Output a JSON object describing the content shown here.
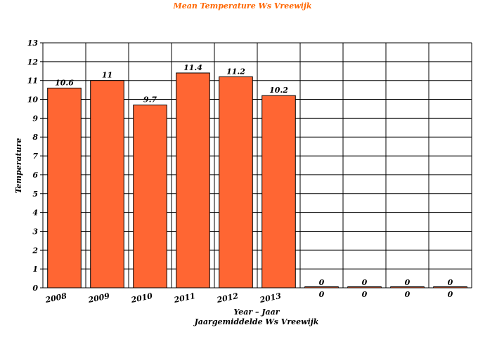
{
  "chart_data": {
    "type": "bar",
    "title": "Mean Temperature Ws Vreewijk",
    "xlabel": "Year – Jaar",
    "xlabel2": "Jaargemiddelde Ws Vreewijk",
    "ylabel": "Temperature",
    "ylim": [
      0,
      13
    ],
    "yticks": [
      "0",
      "1",
      "2",
      "3",
      "4",
      "5",
      "6",
      "7",
      "8",
      "9",
      "10",
      "11",
      "12",
      "13"
    ],
    "categories": [
      "2008",
      "2009",
      "2010",
      "2011",
      "2012",
      "2013",
      "0",
      "0",
      "0",
      "0"
    ],
    "values": [
      10.6,
      11,
      9.7,
      11.4,
      11.2,
      10.2,
      0,
      0,
      0,
      0
    ],
    "value_labels": [
      "10.6",
      "11",
      "9.7",
      "11.4",
      "11.2",
      "10.2",
      "0",
      "0",
      "0",
      "0"
    ],
    "grid": true,
    "colors": {
      "bar": "#ff6633",
      "bar_stroke": "#000000",
      "title": "#ff6600"
    }
  }
}
